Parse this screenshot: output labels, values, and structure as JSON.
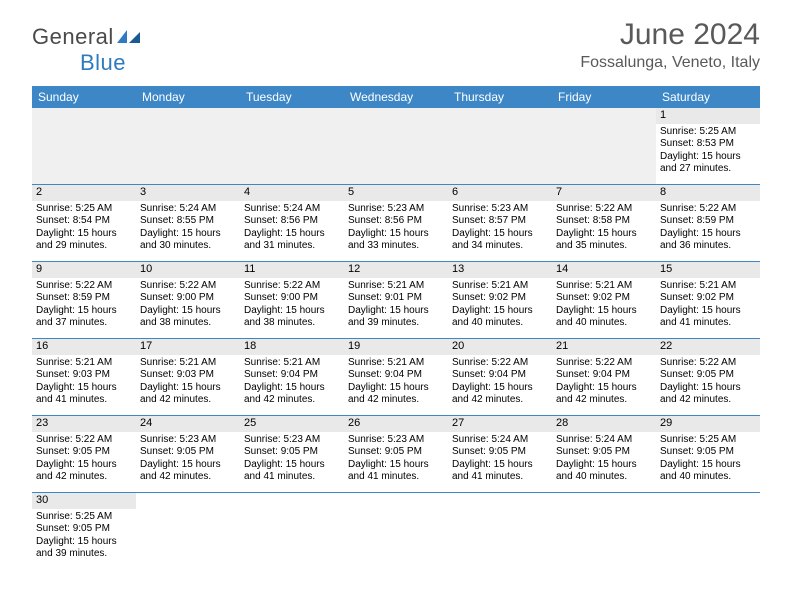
{
  "logo": {
    "text1": "General",
    "text2": "Blue"
  },
  "title": "June 2024",
  "location": "Fossalunga, Veneto, Italy",
  "colors": {
    "header_bg": "#3d87c7",
    "daynum_bg": "#e9e9e9",
    "empty_bg": "#f0f0f0",
    "text_gray": "#595959",
    "logo_blue": "#2f7bbf"
  },
  "weekdays": [
    "Sunday",
    "Monday",
    "Tuesday",
    "Wednesday",
    "Thursday",
    "Friday",
    "Saturday"
  ],
  "weeks": [
    [
      null,
      null,
      null,
      null,
      null,
      null,
      {
        "n": "1",
        "sr": "Sunrise: 5:25 AM",
        "ss": "Sunset: 8:53 PM",
        "d1": "Daylight: 15 hours",
        "d2": "and 27 minutes."
      }
    ],
    [
      {
        "n": "2",
        "sr": "Sunrise: 5:25 AM",
        "ss": "Sunset: 8:54 PM",
        "d1": "Daylight: 15 hours",
        "d2": "and 29 minutes."
      },
      {
        "n": "3",
        "sr": "Sunrise: 5:24 AM",
        "ss": "Sunset: 8:55 PM",
        "d1": "Daylight: 15 hours",
        "d2": "and 30 minutes."
      },
      {
        "n": "4",
        "sr": "Sunrise: 5:24 AM",
        "ss": "Sunset: 8:56 PM",
        "d1": "Daylight: 15 hours",
        "d2": "and 31 minutes."
      },
      {
        "n": "5",
        "sr": "Sunrise: 5:23 AM",
        "ss": "Sunset: 8:56 PM",
        "d1": "Daylight: 15 hours",
        "d2": "and 33 minutes."
      },
      {
        "n": "6",
        "sr": "Sunrise: 5:23 AM",
        "ss": "Sunset: 8:57 PM",
        "d1": "Daylight: 15 hours",
        "d2": "and 34 minutes."
      },
      {
        "n": "7",
        "sr": "Sunrise: 5:22 AM",
        "ss": "Sunset: 8:58 PM",
        "d1": "Daylight: 15 hours",
        "d2": "and 35 minutes."
      },
      {
        "n": "8",
        "sr": "Sunrise: 5:22 AM",
        "ss": "Sunset: 8:59 PM",
        "d1": "Daylight: 15 hours",
        "d2": "and 36 minutes."
      }
    ],
    [
      {
        "n": "9",
        "sr": "Sunrise: 5:22 AM",
        "ss": "Sunset: 8:59 PM",
        "d1": "Daylight: 15 hours",
        "d2": "and 37 minutes."
      },
      {
        "n": "10",
        "sr": "Sunrise: 5:22 AM",
        "ss": "Sunset: 9:00 PM",
        "d1": "Daylight: 15 hours",
        "d2": "and 38 minutes."
      },
      {
        "n": "11",
        "sr": "Sunrise: 5:22 AM",
        "ss": "Sunset: 9:00 PM",
        "d1": "Daylight: 15 hours",
        "d2": "and 38 minutes."
      },
      {
        "n": "12",
        "sr": "Sunrise: 5:21 AM",
        "ss": "Sunset: 9:01 PM",
        "d1": "Daylight: 15 hours",
        "d2": "and 39 minutes."
      },
      {
        "n": "13",
        "sr": "Sunrise: 5:21 AM",
        "ss": "Sunset: 9:02 PM",
        "d1": "Daylight: 15 hours",
        "d2": "and 40 minutes."
      },
      {
        "n": "14",
        "sr": "Sunrise: 5:21 AM",
        "ss": "Sunset: 9:02 PM",
        "d1": "Daylight: 15 hours",
        "d2": "and 40 minutes."
      },
      {
        "n": "15",
        "sr": "Sunrise: 5:21 AM",
        "ss": "Sunset: 9:02 PM",
        "d1": "Daylight: 15 hours",
        "d2": "and 41 minutes."
      }
    ],
    [
      {
        "n": "16",
        "sr": "Sunrise: 5:21 AM",
        "ss": "Sunset: 9:03 PM",
        "d1": "Daylight: 15 hours",
        "d2": "and 41 minutes."
      },
      {
        "n": "17",
        "sr": "Sunrise: 5:21 AM",
        "ss": "Sunset: 9:03 PM",
        "d1": "Daylight: 15 hours",
        "d2": "and 42 minutes."
      },
      {
        "n": "18",
        "sr": "Sunrise: 5:21 AM",
        "ss": "Sunset: 9:04 PM",
        "d1": "Daylight: 15 hours",
        "d2": "and 42 minutes."
      },
      {
        "n": "19",
        "sr": "Sunrise: 5:21 AM",
        "ss": "Sunset: 9:04 PM",
        "d1": "Daylight: 15 hours",
        "d2": "and 42 minutes."
      },
      {
        "n": "20",
        "sr": "Sunrise: 5:22 AM",
        "ss": "Sunset: 9:04 PM",
        "d1": "Daylight: 15 hours",
        "d2": "and 42 minutes."
      },
      {
        "n": "21",
        "sr": "Sunrise: 5:22 AM",
        "ss": "Sunset: 9:04 PM",
        "d1": "Daylight: 15 hours",
        "d2": "and 42 minutes."
      },
      {
        "n": "22",
        "sr": "Sunrise: 5:22 AM",
        "ss": "Sunset: 9:05 PM",
        "d1": "Daylight: 15 hours",
        "d2": "and 42 minutes."
      }
    ],
    [
      {
        "n": "23",
        "sr": "Sunrise: 5:22 AM",
        "ss": "Sunset: 9:05 PM",
        "d1": "Daylight: 15 hours",
        "d2": "and 42 minutes."
      },
      {
        "n": "24",
        "sr": "Sunrise: 5:23 AM",
        "ss": "Sunset: 9:05 PM",
        "d1": "Daylight: 15 hours",
        "d2": "and 42 minutes."
      },
      {
        "n": "25",
        "sr": "Sunrise: 5:23 AM",
        "ss": "Sunset: 9:05 PM",
        "d1": "Daylight: 15 hours",
        "d2": "and 41 minutes."
      },
      {
        "n": "26",
        "sr": "Sunrise: 5:23 AM",
        "ss": "Sunset: 9:05 PM",
        "d1": "Daylight: 15 hours",
        "d2": "and 41 minutes."
      },
      {
        "n": "27",
        "sr": "Sunrise: 5:24 AM",
        "ss": "Sunset: 9:05 PM",
        "d1": "Daylight: 15 hours",
        "d2": "and 41 minutes."
      },
      {
        "n": "28",
        "sr": "Sunrise: 5:24 AM",
        "ss": "Sunset: 9:05 PM",
        "d1": "Daylight: 15 hours",
        "d2": "and 40 minutes."
      },
      {
        "n": "29",
        "sr": "Sunrise: 5:25 AM",
        "ss": "Sunset: 9:05 PM",
        "d1": "Daylight: 15 hours",
        "d2": "and 40 minutes."
      }
    ],
    [
      {
        "n": "30",
        "sr": "Sunrise: 5:25 AM",
        "ss": "Sunset: 9:05 PM",
        "d1": "Daylight: 15 hours",
        "d2": "and 39 minutes."
      },
      null,
      null,
      null,
      null,
      null,
      null
    ]
  ]
}
